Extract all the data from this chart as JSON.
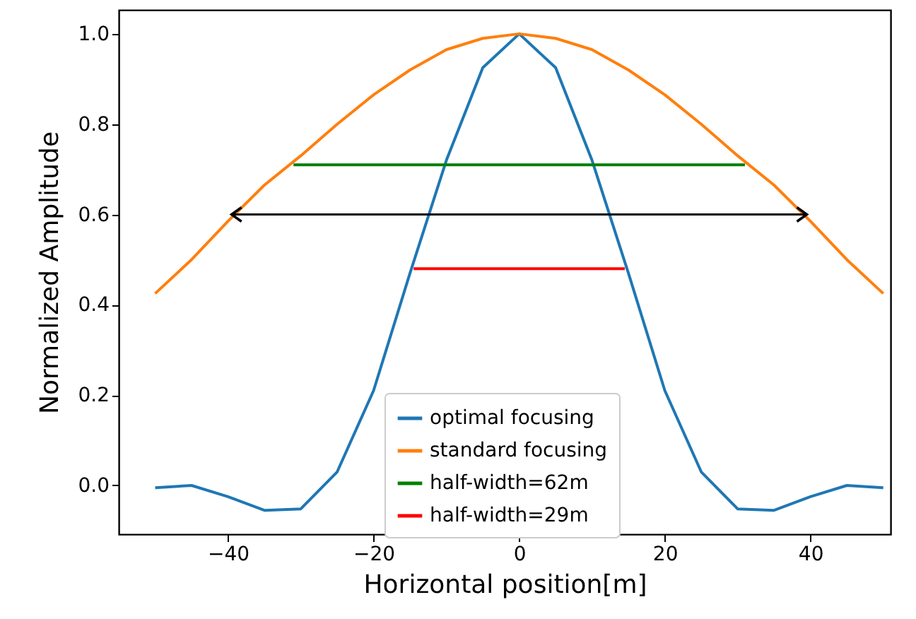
{
  "chart_data": {
    "type": "line",
    "xlabel": "Horizontal position[m]",
    "ylabel": "Normalized Amplitude",
    "xlim": [
      -55,
      51
    ],
    "ylim": [
      -0.108,
      1.053
    ],
    "xticks": [
      {
        "value": -40,
        "label": "−40"
      },
      {
        "value": -20,
        "label": "−20"
      },
      0,
      20,
      40
    ],
    "yticks": [
      {
        "value": 0,
        "label": "0.0"
      },
      {
        "value": 0.2,
        "label": "0.2"
      },
      {
        "value": 0.4,
        "label": "0.4"
      },
      {
        "value": 0.6,
        "label": "0.6"
      },
      {
        "value": 0.8,
        "label": "0.8"
      },
      {
        "value": 1,
        "label": "1.0"
      }
    ],
    "legend": "bottom",
    "marker": "none",
    "line_style": "solid",
    "x": [
      -50,
      -45,
      -40,
      -35,
      -30,
      -25,
      -20,
      -15,
      -10,
      -5,
      0,
      5,
      10,
      15,
      20,
      25,
      30,
      35,
      40,
      45,
      50
    ],
    "series": [
      {
        "name": "optimal focusing",
        "color": "#1f77b4",
        "values": [
          -0.005,
          0.0,
          -0.025,
          -0.055,
          -0.052,
          0.03,
          0.21,
          0.47,
          0.72,
          0.925,
          1.0,
          0.925,
          0.72,
          0.47,
          0.21,
          0.03,
          -0.052,
          -0.055,
          -0.025,
          0.0,
          -0.005
        ]
      },
      {
        "name": "standard focusing",
        "color": "#ff7f0e",
        "values": [
          0.425,
          0.5,
          0.585,
          0.665,
          0.73,
          0.8,
          0.865,
          0.92,
          0.965,
          0.99,
          1.0,
          0.99,
          0.965,
          0.92,
          0.865,
          0.8,
          0.73,
          0.665,
          0.585,
          0.5,
          0.425
        ]
      },
      {
        "name": "half-width=62m",
        "color": "#008000",
        "x": [
          -31,
          31
        ],
        "values": [
          0.71,
          0.71
        ]
      },
      {
        "name": "half-width=29m",
        "color": "#ff0000",
        "x": [
          -14.5,
          14.5
        ],
        "values": [
          0.48,
          0.48
        ]
      }
    ]
  }
}
